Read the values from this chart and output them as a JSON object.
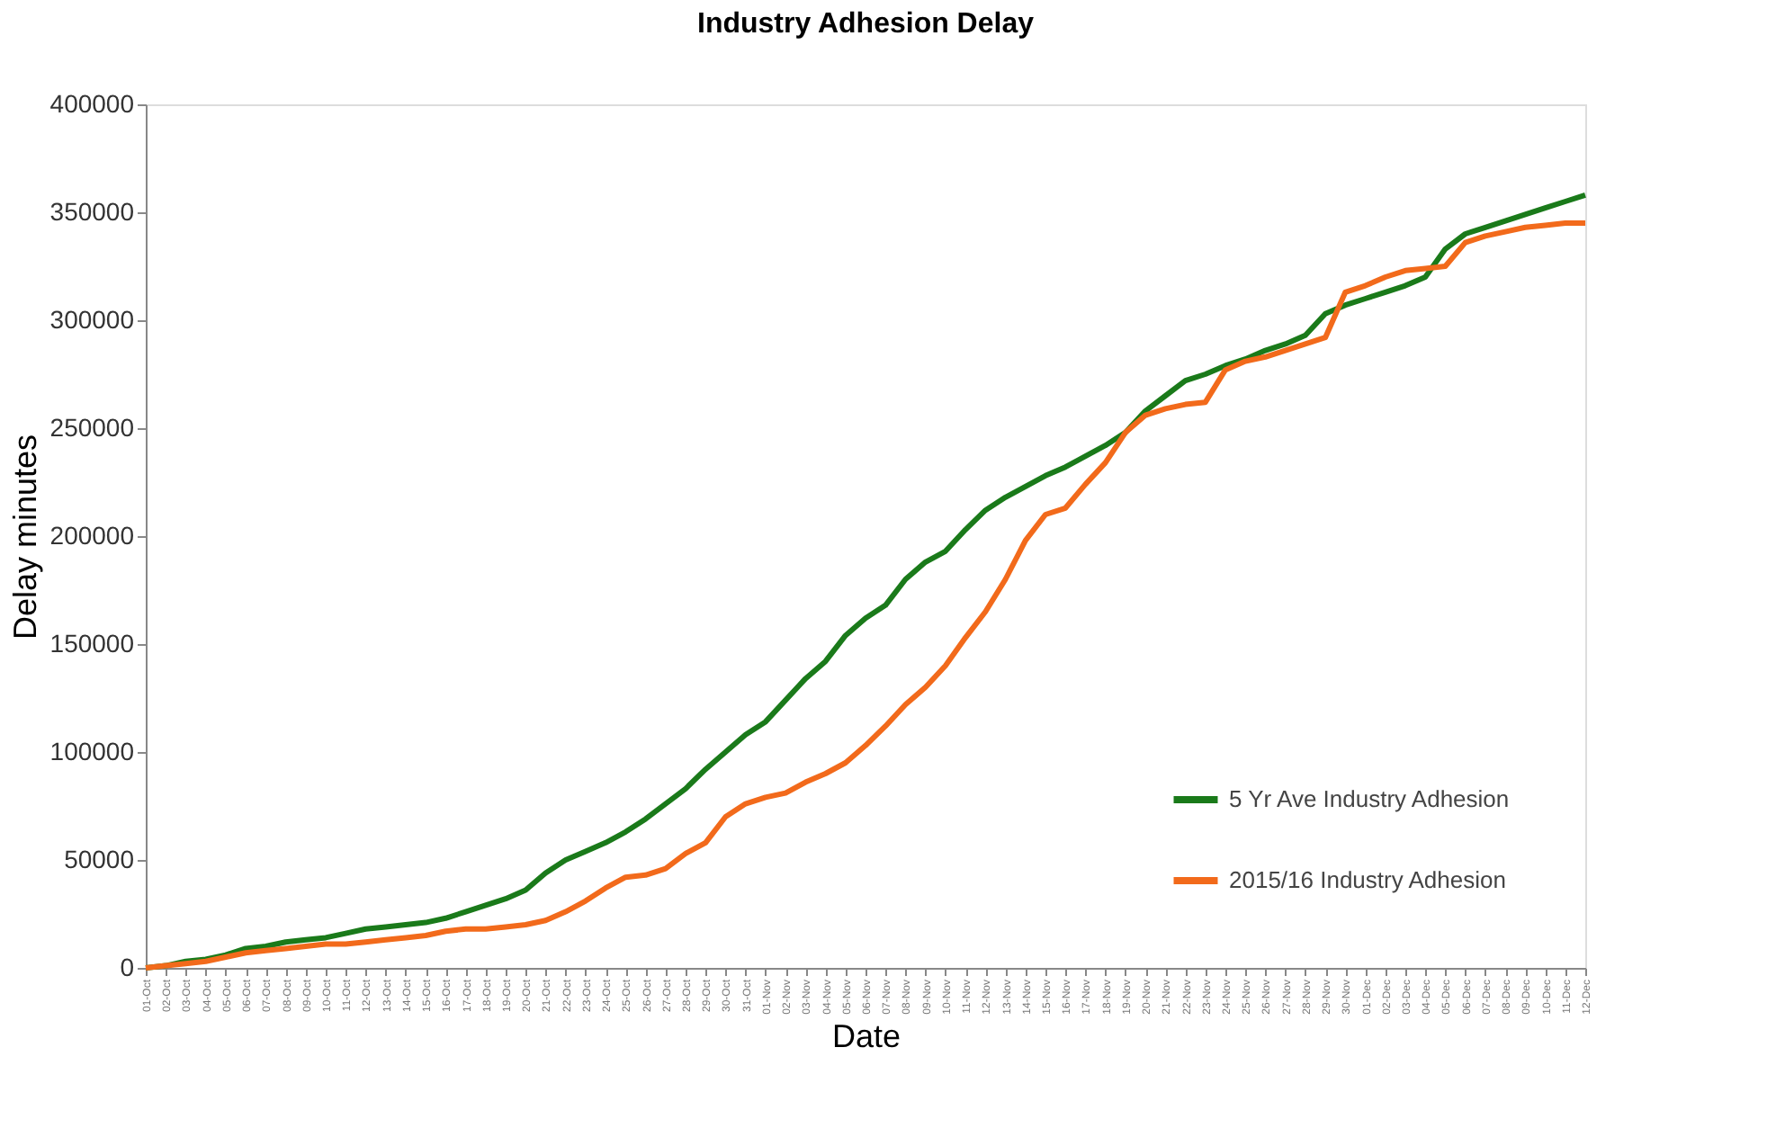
{
  "chart_data": {
    "type": "line",
    "title": "Industry Adhesion Delay",
    "xlabel": "Date",
    "ylabel": "Delay minutes",
    "categories": [
      "01-Oct",
      "02-Oct",
      "03-Oct",
      "04-Oct",
      "05-Oct",
      "06-Oct",
      "07-Oct",
      "08-Oct",
      "09-Oct",
      "10-Oct",
      "11-Oct",
      "12-Oct",
      "13-Oct",
      "14-Oct",
      "15-Oct",
      "16-Oct",
      "17-Oct",
      "18-Oct",
      "19-Oct",
      "20-Oct",
      "21-Oct",
      "22-Oct",
      "23-Oct",
      "24-Oct",
      "25-Oct",
      "26-Oct",
      "27-Oct",
      "28-Oct",
      "29-Oct",
      "30-Oct",
      "31-Oct",
      "01-Nov",
      "02-Nov",
      "03-Nov",
      "04-Nov",
      "05-Nov",
      "06-Nov",
      "07-Nov",
      "08-Nov",
      "09-Nov",
      "10-Nov",
      "11-Nov",
      "12-Nov",
      "13-Nov",
      "14-Nov",
      "15-Nov",
      "16-Nov",
      "17-Nov",
      "18-Nov",
      "19-Nov",
      "20-Nov",
      "21-Nov",
      "22-Nov",
      "23-Nov",
      "24-Nov",
      "25-Nov",
      "26-Nov",
      "27-Nov",
      "28-Nov",
      "29-Nov",
      "30-Nov",
      "01-Dec",
      "02-Dec",
      "03-Dec",
      "04-Dec",
      "05-Dec",
      "06-Dec",
      "07-Dec",
      "08-Dec",
      "09-Dec",
      "10-Dec",
      "11-Dec",
      "12-Dec"
    ],
    "series": [
      {
        "name": "5 Yr Ave Industry Adhesion",
        "color": "#1a7a1a",
        "values": [
          0,
          1000,
          3000,
          4000,
          6000,
          9000,
          10000,
          12000,
          13000,
          14000,
          16000,
          18000,
          19000,
          20000,
          21000,
          23000,
          26000,
          29000,
          32000,
          36000,
          44000,
          50000,
          54000,
          58000,
          63000,
          69000,
          76000,
          83000,
          92000,
          100000,
          108000,
          114000,
          124000,
          134000,
          142000,
          154000,
          162000,
          168000,
          180000,
          188000,
          193000,
          203000,
          212000,
          218000,
          223000,
          228000,
          232000,
          237000,
          242000,
          248000,
          258000,
          265000,
          272000,
          275000,
          279000,
          282000,
          286000,
          289000,
          293000,
          303000,
          307000,
          310000,
          313000,
          316000,
          320000,
          333000,
          340000,
          343000,
          346000,
          349000,
          352000,
          355000,
          358000
        ]
      },
      {
        "name": "2015/16 Industry Adhesion",
        "color": "#f26a1b",
        "values": [
          0,
          1000,
          2000,
          3000,
          5000,
          7000,
          8000,
          9000,
          10000,
          11000,
          11000,
          12000,
          13000,
          14000,
          15000,
          17000,
          18000,
          18000,
          19000,
          20000,
          22000,
          26000,
          31000,
          37000,
          42000,
          43000,
          46000,
          53000,
          58000,
          70000,
          76000,
          79000,
          81000,
          86000,
          90000,
          95000,
          103000,
          112000,
          122000,
          130000,
          140000,
          153000,
          165000,
          180000,
          198000,
          210000,
          213000,
          224000,
          234000,
          248000,
          256000,
          259000,
          261000,
          262000,
          277000,
          281000,
          283000,
          286000,
          289000,
          292000,
          313000,
          316000,
          320000,
          323000,
          324000,
          325000,
          336000,
          339000,
          341000,
          343000,
          344000,
          345000,
          345000
        ]
      }
    ],
    "ylim": [
      0,
      400000
    ],
    "yticks": [
      0,
      50000,
      100000,
      150000,
      200000,
      250000,
      300000,
      350000,
      400000
    ],
    "grid": false,
    "legend": "bottom right",
    "marker": "none",
    "line_style": "solid"
  }
}
